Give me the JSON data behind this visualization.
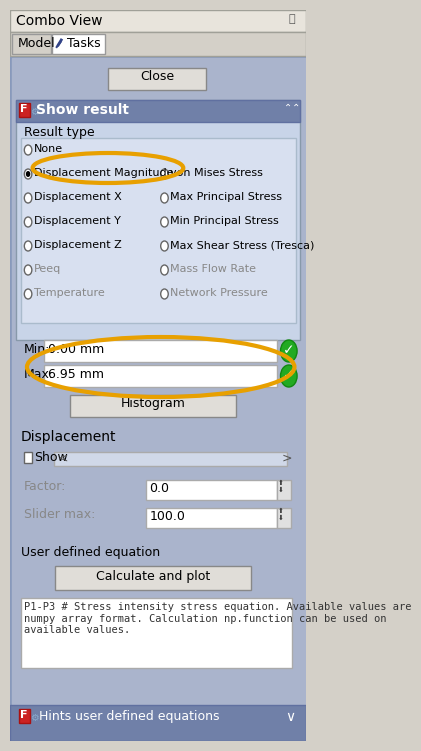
{
  "title": "Combo View",
  "bg_top": "#d4d0c8",
  "bg_panel": "#b0b8d0",
  "bg_section": "#c8d0e0",
  "bg_white": "#ffffff",
  "bg_button": "#e0e0e0",
  "text_dark": "#000000",
  "text_gray": "#888888",
  "text_blue": "#4444cc",
  "accent_red": "#cc2222",
  "accent_orange": "#e8a000",
  "green_check": "#22aa22",
  "radio_options_left": [
    "None",
    "Displacement Magnitude",
    "Displacement X",
    "Displacement Y",
    "Displacement Z",
    "Peeq",
    "Temperature"
  ],
  "radio_options_right": [
    "",
    "von Mises Stress",
    "Max Principal Stress",
    "Min Principal Stress",
    "Max Shear Stress (Tresca)",
    "Mass Flow Rate",
    "Network Pressure"
  ],
  "selected_radio": "Displacement Magnitude",
  "min_val": "0.00 mm",
  "max_val": "6.95 mm",
  "factor_val": "0.0",
  "slider_max_val": "100.0",
  "equation_text": "P1-P3 # Stress intensity stress equation. Available values are\nnumpy array format. Calculation np.function can be used on\navailable values.",
  "bottom_label": "Hints user defined equations"
}
